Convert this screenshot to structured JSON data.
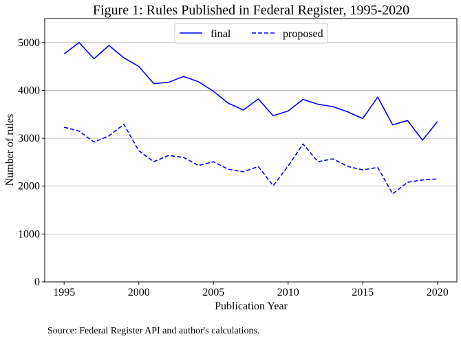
{
  "chart_data": {
    "type": "line",
    "title": "Figure 1: Rules Published in Federal Register, 1995-2020",
    "xlabel": "Publication Year",
    "ylabel": "Number of rules",
    "x": [
      1995,
      1996,
      1997,
      1998,
      1999,
      2000,
      2001,
      2002,
      2003,
      2004,
      2005,
      2006,
      2007,
      2008,
      2009,
      2010,
      2011,
      2012,
      2013,
      2014,
      2015,
      2016,
      2017,
      2018,
      2019,
      2020
    ],
    "series": [
      {
        "name": "final",
        "style": "solid",
        "color": "#0000ff",
        "values": [
          4760,
          5000,
          4660,
          4940,
          4680,
          4500,
          4140,
          4170,
          4290,
          4180,
          3980,
          3730,
          3590,
          3820,
          3470,
          3570,
          3810,
          3710,
          3660,
          3550,
          3410,
          3860,
          3280,
          3370,
          2960,
          3350
        ]
      },
      {
        "name": "proposed",
        "style": "dashed",
        "color": "#0000ff",
        "values": [
          3230,
          3150,
          2920,
          3050,
          3290,
          2740,
          2510,
          2640,
          2600,
          2430,
          2510,
          2350,
          2300,
          2410,
          2010,
          2420,
          2880,
          2510,
          2570,
          2410,
          2340,
          2390,
          1840,
          2080,
          2130,
          2150
        ]
      }
    ],
    "xticks": [
      "1995",
      "2000",
      "2005",
      "2010",
      "2015",
      "2020"
    ],
    "xtick_values": [
      1995,
      2000,
      2005,
      2010,
      2015,
      2020
    ],
    "yticks": [
      "0",
      "1000",
      "2000",
      "3000",
      "4000",
      "5000"
    ],
    "ytick_values": [
      0,
      1000,
      2000,
      3000,
      4000,
      5000
    ],
    "xlim": [
      1993.7,
      2021.3
    ],
    "ylim": [
      0,
      5500
    ],
    "grid": "horizontal",
    "legend_placement": "top-center"
  },
  "footer": {
    "source_text": "Source: Federal Register API and author's calculations."
  }
}
